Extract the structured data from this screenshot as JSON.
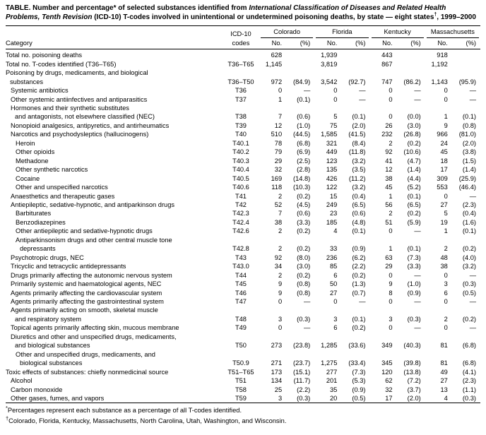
{
  "title": {
    "part1": "TABLE. Number and percentage* of selected substances identified from ",
    "italic": "International Classification of Diseases and Related Health Problems, Tenth Revision",
    "part2": " (ICD-10) T-codes involved in unintentional or undetermined poisoning deaths, by state — eight states",
    "dagger": "†",
    "part3": ", 1999–2000"
  },
  "header": {
    "category": "Category",
    "icd_line1": "ICD-10",
    "icd_line2": "codes",
    "states": [
      "Colorado",
      "Florida",
      "Kentucky",
      "Massachusetts"
    ],
    "no_label": "No.",
    "pct_label": "(%)"
  },
  "table": {
    "rows": [
      {
        "lines": [
          "Total no. poisoning deaths"
        ],
        "indent": 0,
        "code": "",
        "v": [
          "628",
          "",
          "1,939",
          "",
          "443",
          "",
          "918",
          ""
        ]
      },
      {
        "lines": [
          "Total no. T-codes identified (T36–T65)"
        ],
        "indent": 0,
        "code": "T36–T65",
        "v": [
          "1,145",
          "",
          "3,819",
          "",
          "867",
          "",
          "1,192",
          ""
        ]
      },
      {
        "lines": [
          "Poisoning by drugs, medicaments, and biological",
          "substances"
        ],
        "indent": 0,
        "code": "T36–T50",
        "v": [
          "972",
          "(84.9)",
          "3,542",
          "(92.7)",
          "747",
          "(86.2)",
          "1,143",
          "(95.9)"
        ]
      },
      {
        "lines": [
          "Systemic antibiotics"
        ],
        "indent": 1,
        "code": "T36",
        "v": [
          "0",
          "—",
          "0",
          "—",
          "0",
          "—",
          "0",
          "—"
        ]
      },
      {
        "lines": [
          "Other systemic antiinfectives and antiparasitics"
        ],
        "indent": 1,
        "code": "T37",
        "v": [
          "1",
          "(0.1)",
          "0",
          "—",
          "0",
          "—",
          "0",
          "—"
        ]
      },
      {
        "lines": [
          "Hormones and their synthetic substitutes",
          "and antagonists, not elsewhere classified (NEC)"
        ],
        "indent": 1,
        "code": "T38",
        "v": [
          "7",
          "(0.6)",
          "5",
          "(0.1)",
          "0",
          "(0.0)",
          "1",
          "(0.1)"
        ]
      },
      {
        "lines": [
          "Nonopioid analgesics, antipyretics, and antirheumatics"
        ],
        "indent": 1,
        "code": "T39",
        "v": [
          "12",
          "(1.0)",
          "75",
          "(2.0)",
          "26",
          "(3.0)",
          "9",
          "(0.8)"
        ]
      },
      {
        "lines": [
          "Narcotics and psychodysleptics (hallucinogens)"
        ],
        "indent": 1,
        "code": "T40",
        "v": [
          "510",
          "(44.5)",
          "1,585",
          "(41.5)",
          "232",
          "(26.8)",
          "966",
          "(81.0)"
        ]
      },
      {
        "lines": [
          "Heroin"
        ],
        "indent": 2,
        "code": "T40.1",
        "v": [
          "78",
          "(6.8)",
          "321",
          "(8.4)",
          "2",
          "(0.2)",
          "24",
          "(2.0)"
        ]
      },
      {
        "lines": [
          "Other opioids"
        ],
        "indent": 2,
        "code": "T40.2",
        "v": [
          "79",
          "(6.9)",
          "449",
          "(11.8)",
          "92",
          "(10.6)",
          "45",
          "(3.8)"
        ]
      },
      {
        "lines": [
          "Methadone"
        ],
        "indent": 2,
        "code": "T40.3",
        "v": [
          "29",
          "(2.5)",
          "123",
          "(3.2)",
          "41",
          "(4.7)",
          "18",
          "(1.5)"
        ]
      },
      {
        "lines": [
          "Other synthetic narcotics"
        ],
        "indent": 2,
        "code": "T40.4",
        "v": [
          "32",
          "(2.8)",
          "135",
          "(3.5)",
          "12",
          "(1.4)",
          "17",
          "(1.4)"
        ]
      },
      {
        "lines": [
          "Cocaine"
        ],
        "indent": 2,
        "code": "T40.5",
        "v": [
          "169",
          "(14.8)",
          "426",
          "(11.2)",
          "38",
          "(4.4)",
          "309",
          "(25.9)"
        ]
      },
      {
        "lines": [
          "Other and unspecified narcotics"
        ],
        "indent": 2,
        "code": "T40.6",
        "v": [
          "118",
          "(10.3)",
          "122",
          "(3.2)",
          "45",
          "(5.2)",
          "553",
          "(46.4)"
        ]
      },
      {
        "lines": [
          "Anaesthetics and therapeutic gases"
        ],
        "indent": 1,
        "code": "T41",
        "v": [
          "2",
          "(0.2)",
          "15",
          "(0.4)",
          "1",
          "(0.1)",
          "0",
          "—"
        ]
      },
      {
        "lines": [
          "Antiepileptic, sedative-hypnotic, and antiparkinson drugs"
        ],
        "indent": 1,
        "code": "T42",
        "v": [
          "52",
          "(4.5)",
          "249",
          "(6.5)",
          "56",
          "(6.5)",
          "27",
          "(2.3)"
        ]
      },
      {
        "lines": [
          "Barbiturates"
        ],
        "indent": 2,
        "code": "T42.3",
        "v": [
          "7",
          "(0.6)",
          "23",
          "(0.6)",
          "2",
          "(0.2)",
          "5",
          "(0.4)"
        ]
      },
      {
        "lines": [
          "Benzodiazepines"
        ],
        "indent": 2,
        "code": "T42.4",
        "v": [
          "38",
          "(3.3)",
          "185",
          "(4.8)",
          "51",
          "(5.9)",
          "19",
          "(1.6)"
        ]
      },
      {
        "lines": [
          "Other antiepileptic and sedative-hypnotic drugs"
        ],
        "indent": 2,
        "code": "T42.6",
        "v": [
          "2",
          "(0.2)",
          "4",
          "(0.1)",
          "0",
          "—",
          "1",
          "(0.1)"
        ]
      },
      {
        "lines": [
          "Antiparkinsonism drugs and other central muscle tone",
          "depressants"
        ],
        "indent": 2,
        "code": "T42.8",
        "v": [
          "2",
          "(0.2)",
          "33",
          "(0.9)",
          "1",
          "(0.1)",
          "2",
          "(0.2)"
        ]
      },
      {
        "lines": [
          "Psychotropic drugs, NEC"
        ],
        "indent": 1,
        "code": "T43",
        "v": [
          "92",
          "(8.0)",
          "236",
          "(6.2)",
          "63",
          "(7.3)",
          "48",
          "(4.0)"
        ]
      },
      {
        "lines": [
          "Tricyclic and tetracyclic antidepressants"
        ],
        "indent": 1,
        "code": "T43.0",
        "v": [
          "34",
          "(3.0)",
          "85",
          "(2.2)",
          "29",
          "(3.3)",
          "38",
          "(3.2)"
        ]
      },
      {
        "lines": [
          "Drugs primarily affecting the autonomic nervous system"
        ],
        "indent": 1,
        "code": "T44",
        "v": [
          "2",
          "(0.2)",
          "6",
          "(0.2)",
          "0",
          "—",
          "0",
          "—"
        ]
      },
      {
        "lines": [
          "Primarily systemic and haematological agents, NEC"
        ],
        "indent": 1,
        "code": "T45",
        "v": [
          "9",
          "(0.8)",
          "50",
          "(1.3)",
          "9",
          "(1.0)",
          "3",
          "(0.3)"
        ]
      },
      {
        "lines": [
          "Agents primarily affecting the cardiovascular system"
        ],
        "indent": 1,
        "code": "T46",
        "v": [
          "9",
          "(0.8)",
          "27",
          "(0.7)",
          "8",
          "(0.9)",
          "6",
          "(0.5)"
        ]
      },
      {
        "lines": [
          "Agents primarily affecting the gastrointestinal system"
        ],
        "indent": 1,
        "code": "T47",
        "v": [
          "0",
          "—",
          "0",
          "—",
          "0",
          "—",
          "0",
          "—"
        ]
      },
      {
        "lines": [
          "Agents primarily acting on smooth, skeletal muscle",
          "and respiratory system"
        ],
        "indent": 1,
        "code": "T48",
        "v": [
          "3",
          "(0.3)",
          "3",
          "(0.1)",
          "3",
          "(0.3)",
          "2",
          "(0.2)"
        ]
      },
      {
        "lines": [
          "Topical agents primarily affecting skin, mucous membrane"
        ],
        "indent": 1,
        "code": "T49",
        "v": [
          "0",
          "—",
          "6",
          "(0.2)",
          "0",
          "—",
          "0",
          "—"
        ]
      },
      {
        "lines": [
          "Diuretics and other and unspecified drugs, medicaments,",
          "and biological substances"
        ],
        "indent": 1,
        "code": "T50",
        "v": [
          "273",
          "(23.8)",
          "1,285",
          "(33.6)",
          "349",
          "(40.3)",
          "81",
          "(6.8)"
        ]
      },
      {
        "lines": [
          "Other and unspecified drugs, medicaments, and",
          "biological substances"
        ],
        "indent": 2,
        "code": "T50.9",
        "v": [
          "271",
          "(23.7)",
          "1,275",
          "(33.4)",
          "345",
          "(39.8)",
          "81",
          "(6.8)"
        ]
      },
      {
        "lines": [
          "Toxic effects of substances: chiefly nonmedicinal source"
        ],
        "indent": 0,
        "code": "T51–T65",
        "v": [
          "173",
          "(15.1)",
          "277",
          "(7.3)",
          "120",
          "(13.8)",
          "49",
          "(4.1)"
        ]
      },
      {
        "lines": [
          "Alcohol"
        ],
        "indent": 1,
        "code": "T51",
        "v": [
          "134",
          "(11.7)",
          "201",
          "(5.3)",
          "62",
          "(7.2)",
          "27",
          "(2.3)"
        ]
      },
      {
        "lines": [
          "Carbon monoxide"
        ],
        "indent": 1,
        "code": "T58",
        "v": [
          "25",
          "(2.2)",
          "35",
          "(0.9)",
          "32",
          "(3.7)",
          "13",
          "(1.1)"
        ]
      },
      {
        "lines": [
          "Other gases, fumes, and vapors"
        ],
        "indent": 1,
        "code": "T59",
        "v": [
          "3",
          "(0.3)",
          "20",
          "(0.5)",
          "17",
          "(2.0)",
          "4",
          "(0.3)"
        ]
      }
    ]
  },
  "footnotes": [
    {
      "symbol": "*",
      "text": "Percentages represent each substance as a percentage of all T-codes identified."
    },
    {
      "symbol": "†",
      "text": "Colorado, Florida, Kentucky, Massachusetts, North Carolina, Utah, Washington, and Wisconsin."
    }
  ]
}
